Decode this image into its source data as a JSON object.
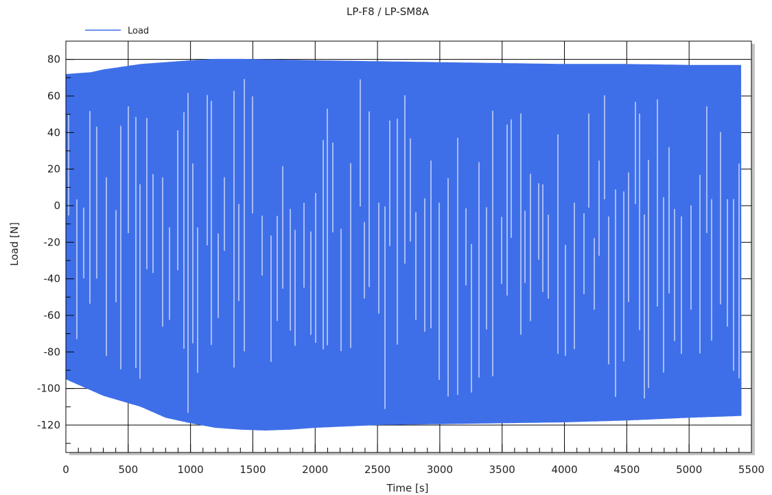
{
  "chart_data": {
    "type": "line",
    "title": "LP-F8 / LP-SM8A",
    "xlabel": "Time [s]",
    "ylabel": "Load [N]",
    "xlim": [
      0,
      5500
    ],
    "ylim": [
      -135,
      90
    ],
    "x_ticks": [
      0,
      500,
      1000,
      1500,
      2000,
      2500,
      3000,
      3500,
      4000,
      4500,
      5000,
      5500
    ],
    "x_tick_labels": [
      "0",
      "500",
      "1000",
      "1500",
      "2000",
      "2500",
      "3000",
      "3500",
      "4000",
      "4500",
      "5000",
      "5500"
    ],
    "y_ticks": [
      -120,
      -100,
      -80,
      -60,
      -40,
      -20,
      0,
      20,
      40,
      60,
      80
    ],
    "y_tick_labels": [
      "-120",
      "-100",
      "-80",
      "-60",
      "-40",
      "-20",
      "0",
      "20",
      "40",
      "60",
      "80"
    ],
    "grid": true,
    "legend": "top-left",
    "color": "#3f6fe8",
    "series": [
      {
        "name": "Load",
        "x_end": 5420,
        "envelope_time": [
          0,
          100,
          200,
          300,
          400,
          500,
          600,
          700,
          800,
          1000,
          1200,
          1400,
          1600,
          1800,
          2000,
          2500,
          3000,
          3500,
          4000,
          4500,
          5000,
          5420
        ],
        "upper": [
          72,
          72.5,
          73,
          74.5,
          75.5,
          76.5,
          77.5,
          78,
          78.5,
          79.5,
          80.3,
          80.3,
          80,
          79.8,
          79.5,
          79,
          78.5,
          78,
          77.5,
          77.5,
          77,
          77
        ],
        "lower": [
          -95,
          -98,
          -101,
          -104,
          -106,
          -108,
          -110,
          -113,
          -116,
          -119,
          -121.5,
          -122.5,
          -123,
          -122.5,
          -121.5,
          -120,
          -119.5,
          -119,
          -118.5,
          -117.5,
          -116,
          -115
        ]
      }
    ]
  }
}
